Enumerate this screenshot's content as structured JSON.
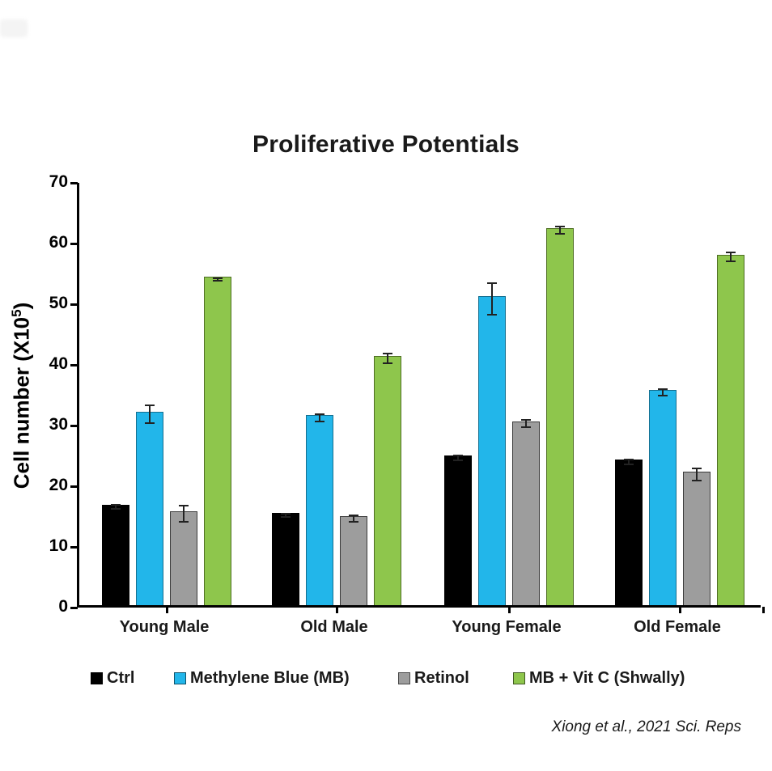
{
  "page": {
    "attribution": "Xiong et al., 2021 Sci. Reps"
  },
  "chart_data": {
    "type": "bar",
    "title": "Proliferative Potentials",
    "ylabel_prefix": "Cell number (X10",
    "ylabel_sup": "5",
    "ylabel_suffix": ")",
    "xlabel": "",
    "ylim": [
      0,
      70
    ],
    "yticks": [
      0,
      10,
      20,
      30,
      40,
      50,
      60,
      70
    ],
    "grid": false,
    "legend_position": "bottom",
    "categories": [
      "Young Male",
      "Old Male",
      "Young Female",
      "Old Female"
    ],
    "series": [
      {
        "name": "Ctrl",
        "color": "#000000",
        "border": "#000000",
        "values": [
          16.6,
          15.2,
          24.7,
          24.0
        ],
        "errors": [
          0.3,
          0.3,
          0.4,
          0.4
        ]
      },
      {
        "name": "Methylene Blue (MB)",
        "color": "#22b6ea",
        "border": "#156f90",
        "values": [
          31.9,
          31.3,
          50.9,
          35.5
        ],
        "errors": [
          1.5,
          0.6,
          2.6,
          0.5
        ]
      },
      {
        "name": "Retinol",
        "color": "#9d9d9d",
        "border": "#3a3a3a",
        "values": [
          15.5,
          14.7,
          30.3,
          22.0
        ],
        "errors": [
          1.3,
          0.5,
          0.6,
          1.0
        ]
      },
      {
        "name": "MB + Vit C (Shwally)",
        "color": "#8ec64c",
        "border": "#4e6e23",
        "values": [
          54.1,
          41.1,
          62.2,
          57.8
        ],
        "errors": [
          0.2,
          0.8,
          0.6,
          0.7
        ]
      }
    ]
  }
}
